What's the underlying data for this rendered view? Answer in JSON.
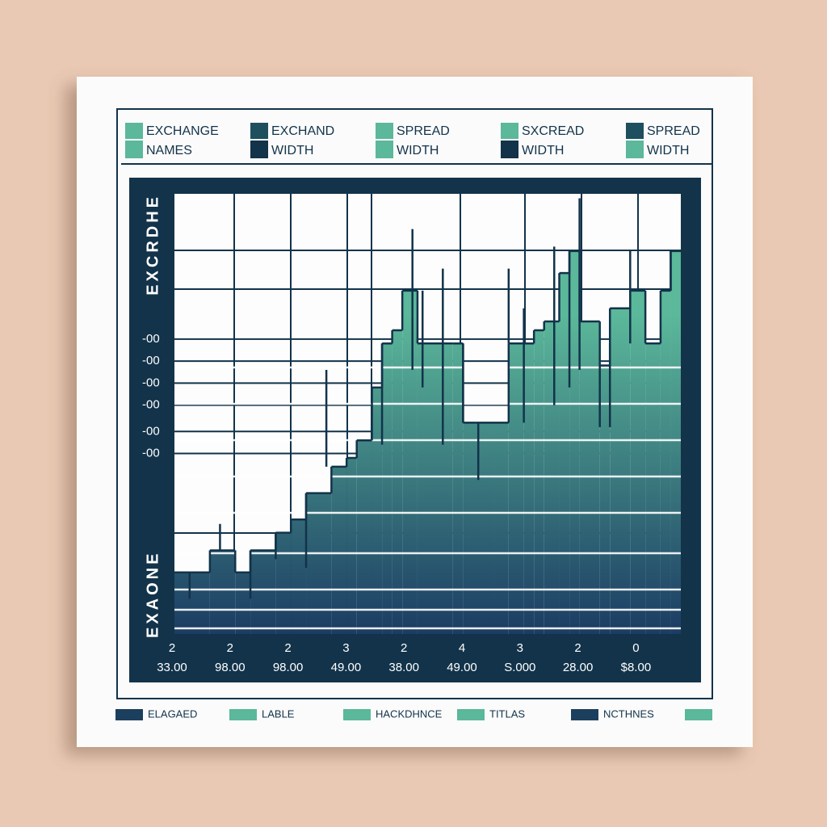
{
  "chart_data": {
    "type": "step-area",
    "legend": [
      {
        "lines": [
          "EXCHANGE",
          "NAMES"
        ],
        "color": "#5bb89a"
      },
      {
        "lines": [
          "EXCHAND",
          "WIDTH"
        ],
        "color": "#1d4f5e"
      },
      {
        "lines": [
          "SPREAD",
          "WIDTH"
        ],
        "color": "#5bb89a"
      },
      {
        "lines": [
          "SXCREAD",
          "WIDTH"
        ],
        "color": "#5bb89a"
      },
      {
        "lines": [
          "SPREAD",
          "WIDTH"
        ],
        "color": "#1d4f5e"
      }
    ],
    "y_label_top": "EXCRDHE",
    "y_label_bottom": "EXAONE",
    "x": [
      0,
      7,
      12,
      15,
      20,
      23,
      26,
      31,
      34,
      36,
      39,
      41,
      43,
      45,
      48,
      55,
      57,
      63,
      66,
      69,
      71,
      73,
      76,
      78,
      80,
      84,
      86,
      90,
      93,
      96,
      98
    ],
    "values": [
      14,
      19,
      14,
      19,
      23,
      26,
      32,
      38,
      40,
      44,
      56,
      66,
      69,
      78,
      66,
      66,
      48,
      48,
      66,
      66,
      69,
      71,
      82,
      87,
      71,
      61,
      74,
      78,
      66,
      78,
      87
    ],
    "color_top": "#5bb89a",
    "color_bottom": "#1b3c63",
    "line_color": "#12334a",
    "spikes": {
      "x": [
        3,
        9,
        15,
        20,
        26,
        30,
        41,
        47,
        49,
        53,
        57,
        60,
        66,
        69,
        75,
        78,
        80,
        84,
        86,
        90,
        98
      ],
      "low": [
        8,
        19,
        8,
        17,
        15,
        38,
        43,
        60,
        56,
        43,
        48,
        35,
        66,
        48,
        52,
        56,
        60,
        47,
        47,
        66,
        78
      ],
      "high": [
        14,
        25,
        19,
        23,
        32,
        60,
        66,
        92,
        78,
        83,
        66,
        48,
        83,
        74,
        88,
        87,
        99,
        61,
        66,
        87,
        87
      ]
    },
    "xlim": [
      0,
      100
    ],
    "ylim": [
      0,
      100
    ],
    "yticks": [
      {
        "value": 67,
        "label": "-00"
      },
      {
        "value": 62,
        "label": "-00"
      },
      {
        "value": 57,
        "label": "-00"
      },
      {
        "value": 52,
        "label": "-00"
      },
      {
        "value": 46,
        "label": "-00"
      },
      {
        "value": 41,
        "label": "-00"
      }
    ],
    "grid": true,
    "categories": [
      [
        "2",
        "33.00"
      ],
      [
        "2",
        "98.00"
      ],
      [
        "2",
        "98.00"
      ],
      [
        "3",
        "49.00"
      ],
      [
        "2",
        "38.00"
      ],
      [
        "4",
        "49.00"
      ],
      [
        "3",
        "S.000"
      ],
      [
        "2",
        "28.00"
      ],
      [
        "0",
        "$8.00"
      ]
    ]
  },
  "footer_legend": [
    {
      "name": "ELAGAED",
      "color": "#1d3f5e"
    },
    {
      "name": "LABLE",
      "color": "#5bb89a"
    },
    {
      "name": "HACKDHNCE",
      "color": "#5bb89a"
    },
    {
      "name": "TITLAS",
      "color": "#5bb89a"
    },
    {
      "name": "NCTHNES",
      "color": "#1d3f5e"
    }
  ]
}
